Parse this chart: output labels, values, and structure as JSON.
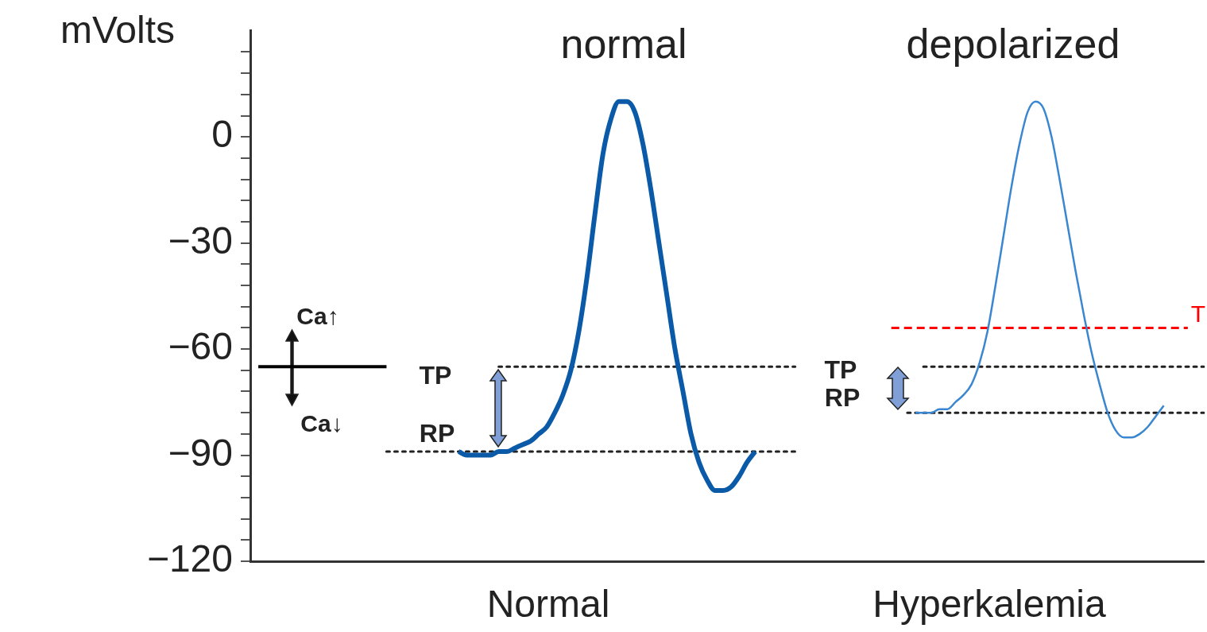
{
  "chart_data": {
    "type": "line",
    "ylabel": "mVolts",
    "categories": [
      null,
      null,
      null,
      null,
      null,
      null,
      null,
      null,
      null,
      null,
      null,
      null,
      null,
      null,
      null,
      null,
      null,
      null,
      null,
      null,
      null,
      null,
      null,
      null,
      null,
      null,
      null,
      null,
      null,
      null,
      null,
      null,
      null,
      null,
      null,
      null,
      null,
      null,
      null,
      null,
      null,
      null,
      null,
      null,
      null,
      null,
      null,
      null,
      null,
      null,
      null,
      null,
      null,
      null,
      null,
      null,
      null,
      null,
      null,
      null,
      null,
      null,
      null,
      null,
      null,
      null,
      null,
      null,
      null,
      null,
      null,
      null,
      null,
      null,
      null,
      null,
      null,
      null,
      null,
      null,
      null,
      null,
      null,
      null,
      null,
      null,
      null,
      null,
      null,
      null,
      null,
      null,
      null,
      null,
      null,
      null,
      null,
      null,
      null,
      null,
      null,
      null,
      null,
      null,
      null,
      null,
      null,
      null,
      null,
      null,
      null,
      null,
      null,
      null,
      null,
      null,
      null,
      null,
      null,
      null
    ],
    "series": [
      {
        "color": "#0a5aa8",
        "line_style": "solid",
        "values": [
          null,
          null,
          null,
          null,
          null,
          null,
          null,
          null,
          null,
          null,
          null,
          null,
          null,
          null,
          null,
          null,
          null,
          null,
          null,
          null,
          null,
          null,
          null,
          null,
          null,
          null,
          -89,
          -90,
          -90,
          -90,
          -90,
          -89,
          -89,
          -88,
          -87,
          -86,
          -84,
          -82,
          -78,
          -73,
          -66,
          -55,
          -40,
          -22,
          -5,
          5,
          10,
          10,
          7,
          -2,
          -15,
          -30,
          -45,
          -60,
          -72,
          -84,
          -92,
          -97,
          -100,
          -100,
          -99,
          -96,
          -92,
          -89,
          null,
          null,
          null,
          null,
          null,
          null,
          null,
          null,
          null,
          null,
          null,
          null,
          null,
          null,
          null,
          null,
          null,
          null,
          null,
          null,
          null,
          null,
          null,
          null,
          null,
          null,
          null,
          null,
          null,
          null,
          null,
          null,
          null,
          null,
          null,
          null,
          null,
          null,
          null,
          null,
          null,
          null,
          null,
          null,
          null,
          null,
          null,
          null,
          null,
          null,
          null,
          null,
          null,
          null,
          null,
          null
        ]
      },
      {
        "color": "#3a86d0",
        "line_style": "solid",
        "values": [
          null,
          null,
          null,
          null,
          null,
          null,
          null,
          null,
          null,
          null,
          null,
          null,
          null,
          null,
          null,
          null,
          null,
          null,
          null,
          null,
          null,
          null,
          null,
          null,
          null,
          null,
          null,
          null,
          null,
          null,
          null,
          null,
          null,
          null,
          null,
          null,
          null,
          null,
          null,
          null,
          null,
          null,
          null,
          null,
          null,
          null,
          null,
          null,
          null,
          null,
          null,
          null,
          null,
          null,
          null,
          null,
          null,
          null,
          null,
          null,
          null,
          null,
          null,
          null,
          null,
          null,
          null,
          null,
          null,
          null,
          null,
          null,
          null,
          null,
          null,
          null,
          null,
          null,
          null,
          null,
          null,
          null,
          null,
          -78,
          -78,
          -78,
          -77,
          -77,
          -75,
          -73,
          -70,
          -64,
          -55,
          -42,
          -28,
          -14,
          -2,
          7,
          10,
          8,
          0,
          -12,
          -25,
          -38,
          -50,
          -61,
          -70,
          -78,
          -83,
          -85,
          -85,
          -84,
          -82,
          -79,
          -76,
          null,
          null,
          null,
          null,
          null
        ]
      },
      {
        "color": "#222222",
        "line_style": "dotted",
        "values": [
          null,
          null,
          null,
          null,
          null,
          null,
          null,
          null,
          null,
          null,
          null,
          null,
          null,
          null,
          null,
          null,
          null,
          null,
          null,
          null,
          null,
          null,
          null,
          null,
          null,
          null,
          null,
          null,
          null,
          null,
          null,
          -65,
          -65,
          -65,
          -65,
          -65,
          -65,
          -65,
          -65,
          -65,
          -65,
          -65,
          -65,
          -65,
          -65,
          -65,
          -65,
          -65,
          -65,
          -65,
          -65,
          -65,
          -65,
          -65,
          -65,
          -65,
          -65,
          -65,
          -65,
          -65,
          -65,
          -65,
          -65,
          -65,
          -65,
          -65,
          -65,
          -65,
          -65,
          null,
          null,
          null,
          null,
          null,
          null,
          null,
          null,
          null,
          null,
          null,
          null,
          null,
          null,
          null,
          null,
          null,
          null,
          null,
          null,
          null,
          null,
          null,
          null,
          null,
          null,
          null,
          null,
          null,
          null,
          null,
          null,
          null,
          null,
          null,
          null,
          null,
          null,
          null,
          null,
          null,
          null,
          null,
          null,
          null,
          null,
          null,
          null,
          null,
          null,
          null
        ]
      },
      {
        "color": "#222222",
        "line_style": "dotted",
        "values": [
          null,
          null,
          null,
          null,
          null,
          null,
          null,
          null,
          null,
          null,
          null,
          null,
          null,
          null,
          null,
          null,
          null,
          null,
          null,
          null,
          null,
          null,
          null,
          null,
          null,
          null,
          null,
          null,
          null,
          null,
          null,
          null,
          null,
          null,
          null,
          null,
          null,
          null,
          null,
          null,
          null,
          null,
          null,
          null,
          null,
          null,
          null,
          null,
          null,
          null,
          null,
          null,
          null,
          null,
          null,
          null,
          null,
          null,
          null,
          null,
          null,
          null,
          null,
          null,
          null,
          null,
          null,
          null,
          null,
          null,
          null,
          null,
          null,
          null,
          null,
          null,
          null,
          null,
          null,
          null,
          null,
          null,
          null,
          null,
          -65,
          -65,
          -65,
          -65,
          -65,
          -65,
          -65,
          -65,
          -65,
          -65,
          -65,
          -65,
          -65,
          -65,
          -65,
          -65,
          -65,
          -65,
          -65,
          -65,
          -65,
          -65,
          -65,
          -65,
          -65,
          -65,
          -65,
          -65,
          -65,
          -65,
          -65,
          -65,
          -65,
          -65,
          -65,
          -65
        ]
      },
      {
        "color": "#222222",
        "line_style": "dotted",
        "values": [
          null,
          null,
          null,
          null,
          null,
          null,
          null,
          null,
          null,
          null,
          null,
          null,
          null,
          null,
          null,
          null,
          null,
          -89,
          -89,
          -89,
          -89,
          -89,
          -89,
          -89,
          -89,
          -89,
          -89,
          -89,
          -89,
          -89,
          -89,
          -89,
          -89,
          -89,
          -89,
          -89,
          -89,
          -89,
          -89,
          -89,
          -89,
          -89,
          -89,
          -89,
          -89,
          -89,
          -89,
          -89,
          -89,
          -89,
          -89,
          -89,
          -89,
          -89,
          -89,
          -89,
          -89,
          -89,
          -89,
          -89,
          -89,
          -89,
          -89,
          -89,
          -89,
          -89,
          -89,
          -89,
          -89,
          null,
          null,
          null,
          null,
          null,
          null,
          null,
          null,
          null,
          null,
          null,
          null,
          null,
          null,
          null,
          null,
          null,
          null,
          null,
          null,
          null,
          null,
          null,
          null,
          null,
          null,
          null,
          null,
          null,
          null,
          null,
          null,
          null,
          null,
          null,
          null,
          null,
          null,
          null,
          null,
          null,
          null,
          null,
          null,
          null,
          null,
          null,
          null,
          null,
          null,
          null
        ]
      },
      {
        "color": "#222222",
        "line_style": "dotted",
        "values": [
          null,
          null,
          null,
          null,
          null,
          null,
          null,
          null,
          null,
          null,
          null,
          null,
          null,
          null,
          null,
          null,
          null,
          null,
          null,
          null,
          null,
          null,
          null,
          null,
          null,
          null,
          null,
          null,
          null,
          null,
          null,
          null,
          null,
          null,
          null,
          null,
          null,
          null,
          null,
          null,
          null,
          null,
          null,
          null,
          null,
          null,
          null,
          null,
          null,
          null,
          null,
          null,
          null,
          null,
          null,
          null,
          null,
          null,
          null,
          null,
          null,
          null,
          null,
          null,
          null,
          null,
          null,
          null,
          null,
          null,
          null,
          null,
          null,
          null,
          null,
          null,
          null,
          null,
          null,
          null,
          null,
          null,
          -78,
          -78,
          -78,
          -78,
          -78,
          -78,
          -78,
          -78,
          -78,
          -78,
          -78,
          -78,
          -78,
          -78,
          -78,
          -78,
          -78,
          -78,
          -78,
          -78,
          -78,
          -78,
          -78,
          -78,
          -78,
          -78,
          -78,
          -78,
          -78,
          -78,
          -78,
          -78,
          -78,
          -78,
          -78,
          -78,
          -78,
          -78
        ]
      },
      {
        "color": "#ff0000",
        "line_style": "dashed",
        "values": [
          null,
          null,
          null,
          null,
          null,
          null,
          null,
          null,
          null,
          null,
          null,
          null,
          null,
          null,
          null,
          null,
          null,
          null,
          null,
          null,
          null,
          null,
          null,
          null,
          null,
          null,
          null,
          null,
          null,
          null,
          null,
          null,
          null,
          null,
          null,
          null,
          null,
          null,
          null,
          null,
          null,
          null,
          null,
          null,
          null,
          null,
          null,
          null,
          null,
          null,
          null,
          null,
          null,
          null,
          null,
          null,
          null,
          null,
          null,
          null,
          null,
          null,
          null,
          null,
          null,
          null,
          null,
          null,
          null,
          null,
          null,
          null,
          null,
          null,
          null,
          null,
          null,
          null,
          null,
          null,
          -54,
          -54,
          -54,
          -54,
          -54,
          -54,
          -54,
          -54,
          -54,
          -54,
          -54,
          -54,
          -54,
          -54,
          -54,
          -54,
          -54,
          -54,
          -54,
          -54,
          -54,
          -54,
          -54,
          -54,
          -54,
          -54,
          -54,
          -54,
          -54,
          -54,
          -54,
          -54,
          -54,
          -54,
          -54,
          -54,
          -54,
          -54,
          null,
          null
        ]
      },
      {
        "color": "#000000",
        "line_style": "solid",
        "values": [
          null,
          -65,
          -65,
          -65,
          -65,
          -65,
          -65,
          -65,
          -65,
          -65,
          -65,
          -65,
          -65,
          -65,
          -65,
          -65,
          -65,
          -65,
          null,
          null,
          null,
          null,
          null,
          null,
          null,
          null,
          null,
          null,
          null,
          null,
          null,
          null,
          null,
          null,
          null,
          null,
          null,
          null,
          null,
          null,
          null,
          null,
          null,
          null,
          null,
          null,
          null,
          null,
          null,
          null,
          null,
          null,
          null,
          null,
          null,
          null,
          null,
          null,
          null,
          null,
          null,
          null,
          null,
          null,
          null,
          null,
          null,
          null,
          null,
          null,
          null,
          null,
          null,
          null,
          null,
          null,
          null,
          null,
          null,
          null,
          null,
          null,
          null,
          null,
          null,
          null,
          null,
          null,
          null,
          null,
          null,
          null,
          null,
          null,
          null,
          null,
          null,
          null,
          null,
          null,
          null,
          null,
          null,
          null,
          null,
          null,
          null,
          null,
          null,
          null,
          null,
          null,
          null,
          null,
          null,
          null,
          null,
          null,
          null,
          null
        ]
      }
    ],
    "ylim": [
      -120,
      30
    ],
    "yticks": [
      {
        "value": 24,
        "label": null
      },
      {
        "value": 18,
        "label": null
      },
      {
        "value": 12,
        "label": null
      },
      {
        "value": 6,
        "label": null
      },
      0,
      {
        "value": -6,
        "label": null
      },
      {
        "value": -12,
        "label": null
      },
      {
        "value": -18,
        "label": null
      },
      {
        "value": -24,
        "label": null
      },
      {
        "value": -30,
        "label": "−30"
      },
      {
        "value": -36,
        "label": null
      },
      {
        "value": -42,
        "label": null
      },
      {
        "value": -48,
        "label": null
      },
      {
        "value": -54,
        "label": null
      },
      {
        "value": -60,
        "label": "−60"
      },
      {
        "value": -66,
        "label": null
      },
      {
        "value": -72,
        "label": null
      },
      {
        "value": -78,
        "label": null
      },
      {
        "value": -84,
        "label": null
      },
      {
        "value": -90,
        "label": "−90"
      },
      {
        "value": -96,
        "label": null
      },
      {
        "value": -102,
        "label": null
      },
      {
        "value": -108,
        "label": null
      },
      {
        "value": -114,
        "label": null
      },
      {
        "value": -120,
        "label": "−120"
      }
    ],
    "annotations": [
      "normal",
      "depolarized",
      "Normal",
      "Hyperkalemia",
      "Ca↑",
      "Ca↓",
      "TP",
      "RP",
      "TP",
      "RP",
      "T"
    ],
    "tick_labels": "y",
    "marker": "none",
    "grid": false
  }
}
